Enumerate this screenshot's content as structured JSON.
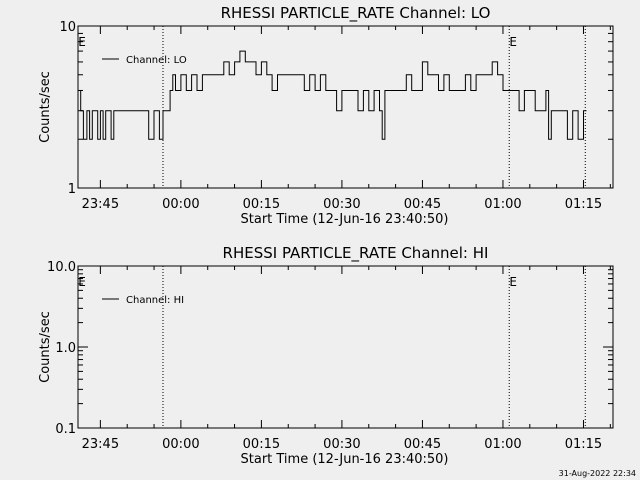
{
  "chart_data": [
    {
      "type": "line",
      "title": "RHESSI PARTICLE_RATE Channel: LO",
      "xlabel": "Start Time (12-Jun-16 23:40:50)",
      "ylabel": "Counts/sec",
      "yscale": "log",
      "ylim": [
        1,
        10
      ],
      "yticks": [
        "1",
        "10"
      ],
      "xlim": [
        "23:40:50",
        "01:20:30"
      ],
      "xticks": [
        "23:45",
        "00:00",
        "00:15",
        "00:30",
        "00:45",
        "01:00",
        "01:15"
      ],
      "event_lines": [
        "23:56:40",
        "01:01:10",
        "01:15:20"
      ],
      "event_labels": [
        "E",
        "E"
      ],
      "legend": {
        "label": "Channel: LO",
        "placement": "top-left"
      },
      "grid": false,
      "series": [
        {
          "name": "Channel: LO",
          "x": [
            "23:40:50",
            "23:41:20",
            "23:41:50",
            "23:42:30",
            "23:43:00",
            "23:43:30",
            "23:44:00",
            "23:44:30",
            "23:45:00",
            "23:45:30",
            "23:46:00",
            "23:46:30",
            "23:47:00",
            "23:47:30",
            "23:48:00",
            "23:49:00",
            "23:50:00",
            "23:51:00",
            "23:52:00",
            "23:53:00",
            "23:54:00",
            "23:55:00",
            "23:56:00",
            "23:56:40",
            "23:57:30",
            "23:58:00",
            "23:58:30",
            "23:59:00",
            "23:59:30",
            "00:00:00",
            "00:01:00",
            "00:02:00",
            "00:03:00",
            "00:04:00",
            "00:05:00",
            "00:06:00",
            "00:07:00",
            "00:08:00",
            "00:09:00",
            "00:10:00",
            "00:11:00",
            "00:12:00",
            "00:13:00",
            "00:14:00",
            "00:15:00",
            "00:16:00",
            "00:17:00",
            "00:18:00",
            "00:19:00",
            "00:20:00",
            "00:21:00",
            "00:22:00",
            "00:23:00",
            "00:24:00",
            "00:25:00",
            "00:26:00",
            "00:27:00",
            "00:28:00",
            "00:29:00",
            "00:30:00",
            "00:31:00",
            "00:32:00",
            "00:33:00",
            "00:34:00",
            "00:35:00",
            "00:36:00",
            "00:37:00",
            "00:37:30",
            "00:38:00",
            "00:39:00",
            "00:40:00",
            "00:41:00",
            "00:42:00",
            "00:43:00",
            "00:44:00",
            "00:45:00",
            "00:46:00",
            "00:47:00",
            "00:48:00",
            "00:49:00",
            "00:50:00",
            "00:51:00",
            "00:52:00",
            "00:53:00",
            "00:54:00",
            "00:55:00",
            "00:56:00",
            "00:57:00",
            "00:58:00",
            "00:59:00",
            "01:00:00",
            "01:01:00",
            "01:02:00",
            "01:03:00",
            "01:04:00",
            "01:05:00",
            "01:06:00",
            "01:07:00",
            "01:08:00",
            "01:08:30",
            "01:09:00",
            "01:10:00",
            "01:11:00",
            "01:12:00",
            "01:13:00",
            "01:14:00",
            "01:15:00"
          ],
          "y": [
            4,
            3,
            2,
            3,
            2,
            3,
            3,
            2,
            3,
            2,
            3,
            3,
            2,
            3,
            3,
            3,
            3,
            3,
            3,
            3,
            2,
            3,
            2,
            3,
            3,
            4,
            5,
            4,
            4,
            5,
            4,
            5,
            4,
            5,
            5,
            5,
            5,
            6,
            5,
            6,
            7,
            6,
            6,
            5,
            6,
            5,
            4,
            5,
            5,
            5,
            5,
            5,
            4,
            5,
            4,
            5,
            4,
            4,
            3,
            4,
            4,
            4,
            3,
            4,
            3,
            4,
            3,
            2,
            4,
            4,
            4,
            4,
            5,
            4,
            4,
            6,
            5,
            5,
            4,
            5,
            4,
            4,
            4,
            5,
            4,
            5,
            5,
            5,
            6,
            5,
            4,
            4,
            4,
            3,
            4,
            4,
            3,
            3,
            4,
            2,
            3,
            3,
            3,
            2,
            3,
            2,
            3
          ]
        }
      ]
    },
    {
      "type": "line",
      "title": "RHESSI PARTICLE_RATE Channel: HI",
      "xlabel": "Start Time (12-Jun-16 23:40:50)",
      "ylabel": "Counts/sec",
      "yscale": "log",
      "ylim": [
        0.1,
        10
      ],
      "yticks": [
        "0.1",
        "1.0",
        "10.0"
      ],
      "xlim": [
        "23:40:50",
        "01:20:30"
      ],
      "xticks": [
        "23:45",
        "00:00",
        "00:15",
        "00:30",
        "00:45",
        "01:00",
        "01:15"
      ],
      "event_lines": [
        "23:56:40",
        "01:01:10",
        "01:15:20"
      ],
      "event_labels": [
        "E",
        "E"
      ],
      "legend": {
        "label": "Channel: HI",
        "placement": "top-left"
      },
      "grid": false,
      "series": [
        {
          "name": "Channel: HI",
          "x": [],
          "y": []
        }
      ]
    }
  ],
  "footer": {
    "timestamp": "31-Aug-2022 22:34"
  },
  "colors": {
    "background": "#efefef",
    "foreground": "#000000"
  }
}
